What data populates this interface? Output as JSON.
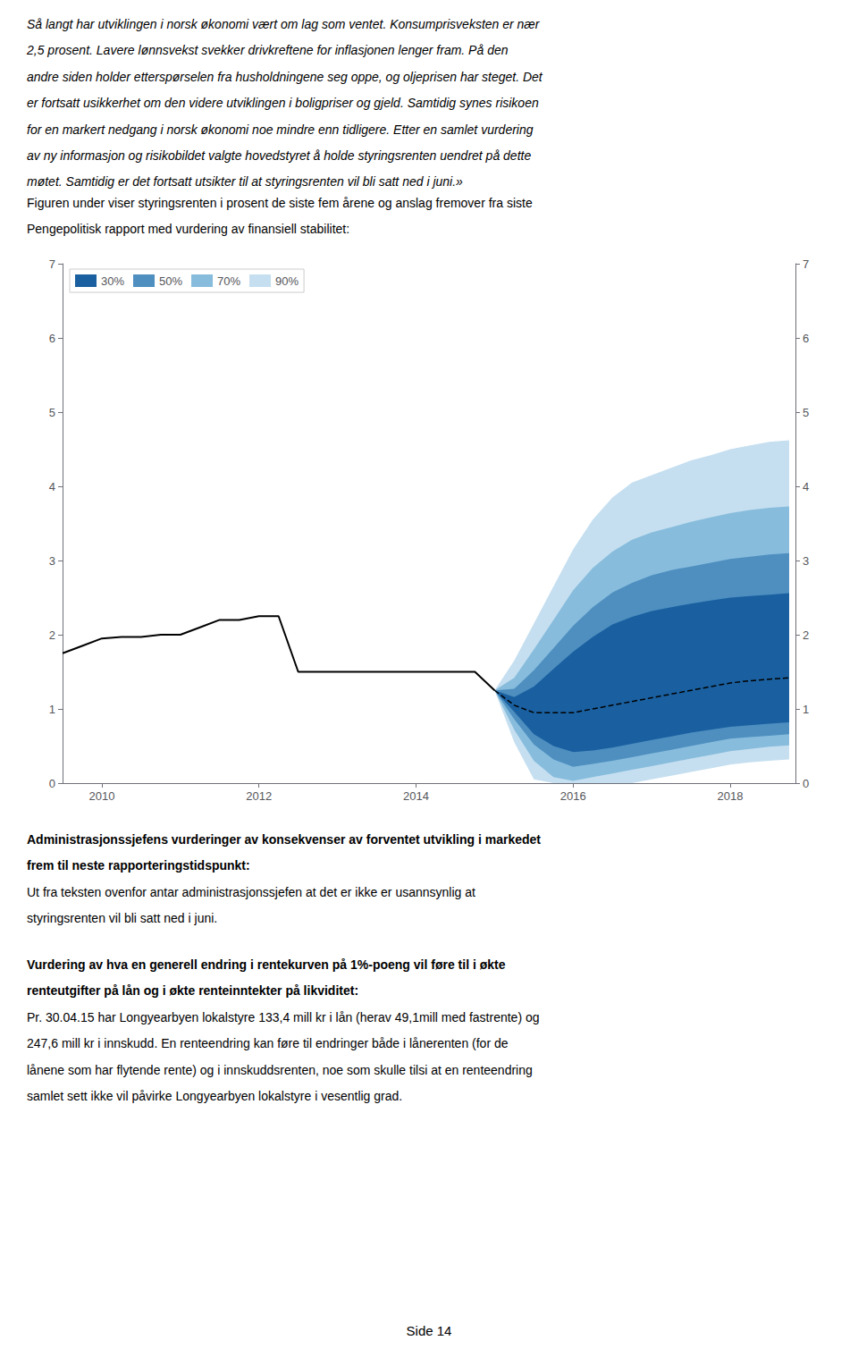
{
  "chart_data": {
    "type": "fan",
    "background_color": "#ffffff",
    "xlim": [
      2009.5,
      2018.83
    ],
    "xticks": [
      2010,
      2012,
      2014,
      2016,
      2018
    ],
    "ylim": [
      0,
      7
    ],
    "yticks": [
      0,
      1,
      2,
      3,
      4,
      5,
      6,
      7
    ],
    "y2lim": [
      0,
      7
    ],
    "y2ticks": [
      0,
      1,
      2,
      3,
      4,
      5,
      6,
      7
    ],
    "grid": false,
    "legend": "upper left",
    "series": [
      {
        "type": "band",
        "name": "90%",
        "color": "#c5dff0",
        "x": [
          2015.0,
          2015.25,
          2015.5,
          2015.75,
          2016.0,
          2016.25,
          2016.5,
          2016.75,
          2017.0,
          2017.25,
          2017.5,
          2017.75,
          2018.0,
          2018.25,
          2018.5,
          2018.75
        ],
        "lower": [
          1.25,
          0.55,
          0.05,
          0.0,
          0.0,
          0.0,
          0.0,
          0.0,
          0.05,
          0.1,
          0.15,
          0.2,
          0.25,
          0.28,
          0.3,
          0.32
        ],
        "upper": [
          1.25,
          1.65,
          2.15,
          2.65,
          3.15,
          3.55,
          3.85,
          4.05,
          4.15,
          4.25,
          4.35,
          4.42,
          4.5,
          4.55,
          4.6,
          4.62
        ]
      },
      {
        "type": "band",
        "name": "70%",
        "color": "#87bcdc",
        "x": [
          2015.0,
          2015.25,
          2015.5,
          2015.75,
          2016.0,
          2016.25,
          2016.5,
          2016.75,
          2017.0,
          2017.25,
          2017.5,
          2017.75,
          2018.0,
          2018.25,
          2018.5,
          2018.75
        ],
        "lower": [
          1.25,
          0.72,
          0.3,
          0.08,
          0.03,
          0.08,
          0.13,
          0.18,
          0.23,
          0.28,
          0.33,
          0.38,
          0.43,
          0.46,
          0.49,
          0.51
        ],
        "upper": [
          1.25,
          1.42,
          1.8,
          2.2,
          2.6,
          2.9,
          3.12,
          3.28,
          3.38,
          3.45,
          3.52,
          3.58,
          3.64,
          3.68,
          3.71,
          3.73
        ]
      },
      {
        "type": "band",
        "name": "50%",
        "color": "#4e8fc0",
        "x": [
          2015.0,
          2015.25,
          2015.5,
          2015.75,
          2016.0,
          2016.25,
          2016.5,
          2016.75,
          2017.0,
          2017.25,
          2017.5,
          2017.75,
          2018.0,
          2018.25,
          2018.5,
          2018.75
        ],
        "lower": [
          1.25,
          0.86,
          0.52,
          0.32,
          0.22,
          0.26,
          0.3,
          0.35,
          0.4,
          0.45,
          0.5,
          0.55,
          0.6,
          0.62,
          0.64,
          0.66
        ],
        "upper": [
          1.25,
          1.27,
          1.52,
          1.82,
          2.12,
          2.37,
          2.57,
          2.7,
          2.8,
          2.87,
          2.92,
          2.97,
          3.02,
          3.05,
          3.08,
          3.1
        ]
      },
      {
        "type": "band",
        "name": "30%",
        "color": "#1a60a0",
        "x": [
          2015.0,
          2015.25,
          2015.5,
          2015.75,
          2016.0,
          2016.25,
          2016.5,
          2016.75,
          2017.0,
          2017.25,
          2017.5,
          2017.75,
          2018.0,
          2018.25,
          2018.5,
          2018.75
        ],
        "lower": [
          1.25,
          0.96,
          0.66,
          0.5,
          0.42,
          0.44,
          0.48,
          0.53,
          0.58,
          0.63,
          0.68,
          0.72,
          0.76,
          0.78,
          0.8,
          0.82
        ],
        "upper": [
          1.25,
          1.16,
          1.3,
          1.54,
          1.77,
          1.97,
          2.14,
          2.24,
          2.32,
          2.37,
          2.42,
          2.46,
          2.5,
          2.52,
          2.54,
          2.56
        ]
      },
      {
        "type": "line",
        "color": "#000000",
        "line_style": "solid",
        "x": [
          2009.5,
          2009.75,
          2010.0,
          2010.25,
          2010.5,
          2010.75,
          2011.0,
          2011.25,
          2011.5,
          2011.75,
          2012.0,
          2012.25,
          2012.5,
          2012.75,
          2013.0,
          2013.25,
          2013.5,
          2013.75,
          2014.0,
          2014.25,
          2014.5,
          2014.75,
          2015.0
        ],
        "values": [
          1.75,
          1.85,
          1.95,
          1.97,
          1.97,
          2.0,
          2.0,
          2.1,
          2.2,
          2.2,
          2.25,
          2.25,
          1.5,
          1.5,
          1.5,
          1.5,
          1.5,
          1.5,
          1.5,
          1.5,
          1.5,
          1.5,
          1.25
        ]
      },
      {
        "type": "line",
        "color": "#000000",
        "line_style": "dashed",
        "x": [
          2015.0,
          2015.25,
          2015.5,
          2015.75,
          2016.0,
          2016.25,
          2016.5,
          2016.75,
          2017.0,
          2017.25,
          2017.5,
          2017.75,
          2018.0,
          2018.25,
          2018.5,
          2018.75
        ],
        "values": [
          1.25,
          1.05,
          0.95,
          0.95,
          0.95,
          1.0,
          1.05,
          1.1,
          1.15,
          1.2,
          1.25,
          1.3,
          1.35,
          1.38,
          1.4,
          1.42
        ]
      }
    ],
    "annotations": {
      "above": [
        {
          "style": "italic",
          "lines": [
            "Så langt har utviklingen i norsk økonomi vært om lag som ventet. Konsumprisveksten er nær",
            "2,5 prosent. Lavere lønnsvekst svekker drivkreftene for inflasjonen lenger fram. På den",
            "andre siden holder etterspørselen fra husholdningene seg oppe, og oljeprisen har steget. Det",
            "er fortsatt usikkerhet om den videre utviklingen i boligpriser og gjeld. Samtidig synes risikoen",
            "for en markert nedgang i norsk økonomi noe mindre enn tidligere. Etter en samlet vurdering",
            "av ny informasjon og risikobildet valgte hovedstyret å holde styringsrenten uendret på dette",
            "møtet. Samtidig er det fortsatt utsikter til at styringsrenten vil bli satt ned i juni.»"
          ]
        },
        {
          "style": "normal",
          "lines": [
            "Figuren under viser styringsrenten i prosent de siste fem årene og anslag fremover fra siste",
            "Pengepolitisk rapport med vurdering av finansiell stabilitet:"
          ]
        }
      ],
      "below": [
        {
          "style": "bold",
          "lines": [
            "Administrasjonssjefens vurderinger av konsekvenser av forventet utvikling i markedet",
            "frem til neste rapporteringstidspunkt:"
          ]
        },
        {
          "style": "normal",
          "lines": [
            "Ut fra teksten ovenfor antar administrasjonssjefen at det er ikke er usannsynlig at",
            "styringsrenten vil bli satt ned i juni."
          ]
        },
        {
          "style": "bold",
          "lines": [
            "Vurdering av hva en generell endring i rentekurven på 1%-poeng vil føre til i økte",
            "renteutgifter på lån og i økte renteinntekter på likviditet:"
          ]
        },
        {
          "style": "normal",
          "lines": [
            "Pr. 30.04.15 har Longyearbyen lokalstyre 133,4 mill kr i lån (herav 49,1mill med fastrente) og",
            "247,6 mill kr i innskudd. En renteendring kan føre til endringer både i lånerenten (for de",
            "lånene som har flytende rente) og i innskuddsrenten, noe som skulle tilsi at en renteendring",
            "samlet sett ikke vil påvirke Longyearbyen lokalstyre i vesentlig grad."
          ]
        }
      ],
      "footer": "Side 14"
    }
  }
}
